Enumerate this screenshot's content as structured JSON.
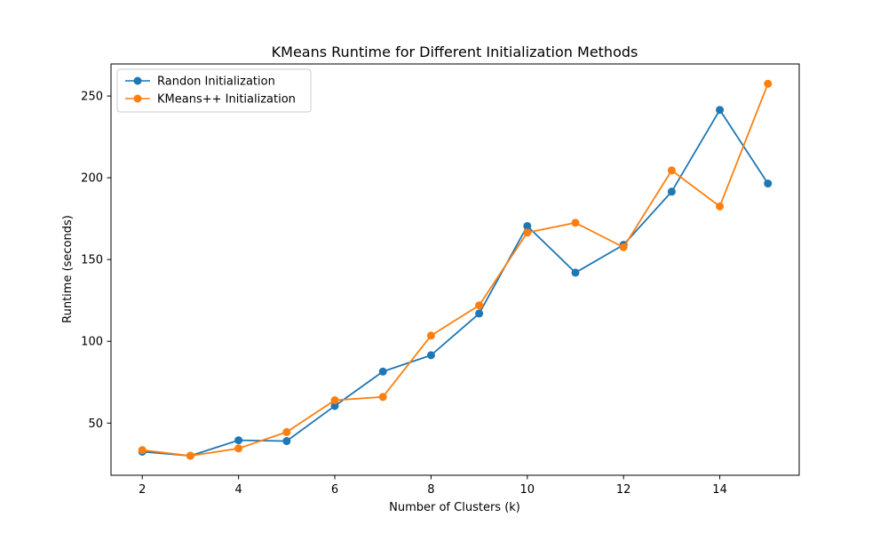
{
  "chart_data": {
    "type": "line",
    "title": "KMeans Runtime for Different Initialization Methods",
    "xlabel": "Number of Clusters (k)",
    "ylabel": "Runtime (seconds)",
    "x": [
      2,
      3,
      4,
      5,
      6,
      7,
      8,
      9,
      10,
      11,
      12,
      13,
      14,
      15
    ],
    "xlim": [
      1.35,
      15.65
    ],
    "ylim": [
      18.1,
      269.6
    ],
    "xticks": [
      2,
      4,
      6,
      8,
      10,
      12,
      14
    ],
    "yticks": [
      50,
      100,
      150,
      200,
      250
    ],
    "grid": false,
    "legend_position": "top-left",
    "marker": "circle",
    "series": [
      {
        "name": "Randon Initialization",
        "color": "#1f77b4",
        "values": [
          32.5,
          30.0,
          39.5,
          39.0,
          60.5,
          81.5,
          91.5,
          117.0,
          170.5,
          142.0,
          159.0,
          191.5,
          241.5,
          196.5
        ]
      },
      {
        "name": "KMeans++ Initialization",
        "color": "#ff7f0e",
        "values": [
          33.5,
          30.0,
          34.5,
          44.5,
          64.0,
          66.0,
          103.5,
          122.0,
          166.5,
          172.5,
          157.5,
          204.5,
          182.5,
          257.5
        ]
      }
    ]
  }
}
